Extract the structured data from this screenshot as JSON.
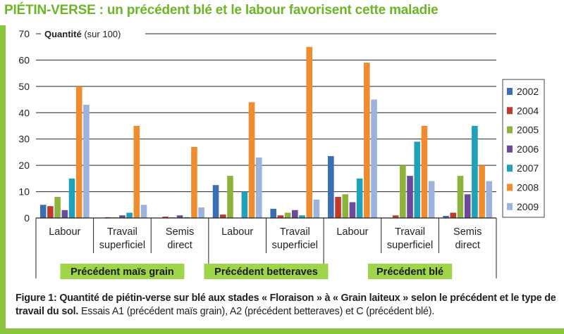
{
  "title": "PIÉTIN-VERSE : un précédent blé et le labour favorisent cette maladie",
  "caption": {
    "bold": "Figure 1: Quantité de piétin-verse sur blé aux stades « Floraison » à « Grain laiteux »  selon le précédent et le type de travail du sol.",
    "normal": " Essais A1 (précédent maïs grain), A2 (précédent betteraves) et C (précédent blé)."
  },
  "colors": {
    "accent": "#8cc63f",
    "title": "#6bb526",
    "group_label_bg": "#9fd548"
  },
  "chart_data": {
    "type": "bar",
    "ylabel": "Quantité",
    "ylabel_unit": "(sur 100)",
    "ylim": [
      0,
      70
    ],
    "yticks": [
      0,
      10,
      20,
      30,
      40,
      50,
      60,
      70
    ],
    "grid": true,
    "legend_position": "right",
    "categories": [
      [
        "Labour"
      ],
      [
        "Travail",
        "superficiel"
      ],
      [
        "Semis",
        "direct"
      ],
      [
        "Labour"
      ],
      [
        "Travail",
        "superficiel"
      ],
      [
        "Labour"
      ],
      [
        "Travail",
        "superficiel"
      ],
      [
        "Semis",
        "direct"
      ]
    ],
    "groups": [
      {
        "label": "Précédent maïs grain",
        "categories": [
          0,
          1,
          2
        ]
      },
      {
        "label": "Précédent betteraves",
        "categories": [
          3,
          4
        ]
      },
      {
        "label": "Précédent blé",
        "categories": [
          5,
          6,
          7
        ]
      }
    ],
    "series": [
      {
        "name": "2002",
        "color": "#3a6eb5",
        "values": [
          5,
          0,
          0,
          12.5,
          3.5,
          23.5,
          0,
          0.8
        ]
      },
      {
        "name": "2004",
        "color": "#c0392b",
        "values": [
          4.5,
          0.3,
          0.5,
          1.3,
          1,
          8,
          1,
          2
        ]
      },
      {
        "name": "2005",
        "color": "#8db33c",
        "values": [
          8,
          0.3,
          0.3,
          16,
          2,
          9,
          20,
          16
        ]
      },
      {
        "name": "2006",
        "color": "#6b4a9b",
        "values": [
          3,
          1,
          1,
          0,
          3,
          6,
          16,
          9
        ]
      },
      {
        "name": "2007",
        "color": "#1fa2b8",
        "values": [
          15,
          2,
          0.3,
          10,
          1,
          15,
          29,
          35
        ]
      },
      {
        "name": "2008",
        "color": "#ef8c2f",
        "values": [
          50,
          35,
          27,
          44,
          65,
          59,
          35,
          20
        ]
      },
      {
        "name": "2009",
        "color": "#9bb3dd",
        "values": [
          43,
          5,
          4,
          23,
          7,
          45,
          14,
          14
        ]
      }
    ]
  }
}
